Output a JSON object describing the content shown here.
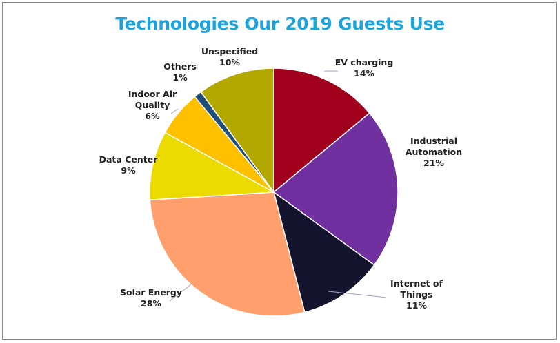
{
  "chart_data": {
    "type": "pie",
    "title": "Technologies Our 2019 Guests Use",
    "slices": [
      {
        "label_lines": [
          "EV charging"
        ],
        "pct_label": "14%",
        "value": 14,
        "color": "#a0001c"
      },
      {
        "label_lines": [
          "Industrial",
          "Automation"
        ],
        "pct_label": "21%",
        "value": 21,
        "color": "#7030a0"
      },
      {
        "label_lines": [
          "Internet of",
          "Things"
        ],
        "pct_label": "11%",
        "value": 11,
        "color": "#14142e"
      },
      {
        "label_lines": [
          "Solar Energy"
        ],
        "pct_label": "28%",
        "value": 28,
        "color": "#ff9f6e"
      },
      {
        "label_lines": [
          "Data Center"
        ],
        "pct_label": "9%",
        "value": 9,
        "color": "#ecdb00"
      },
      {
        "label_lines": [
          "Indoor Air",
          "Quality"
        ],
        "pct_label": "6%",
        "value": 6,
        "color": "#ffc000"
      },
      {
        "label_lines": [
          "Others"
        ],
        "pct_label": "1%",
        "value": 1,
        "color": "#1f4e79"
      },
      {
        "label_lines": [
          "Unspecified"
        ],
        "pct_label": "10%",
        "value": 10,
        "color": "#b3a800"
      }
    ]
  }
}
